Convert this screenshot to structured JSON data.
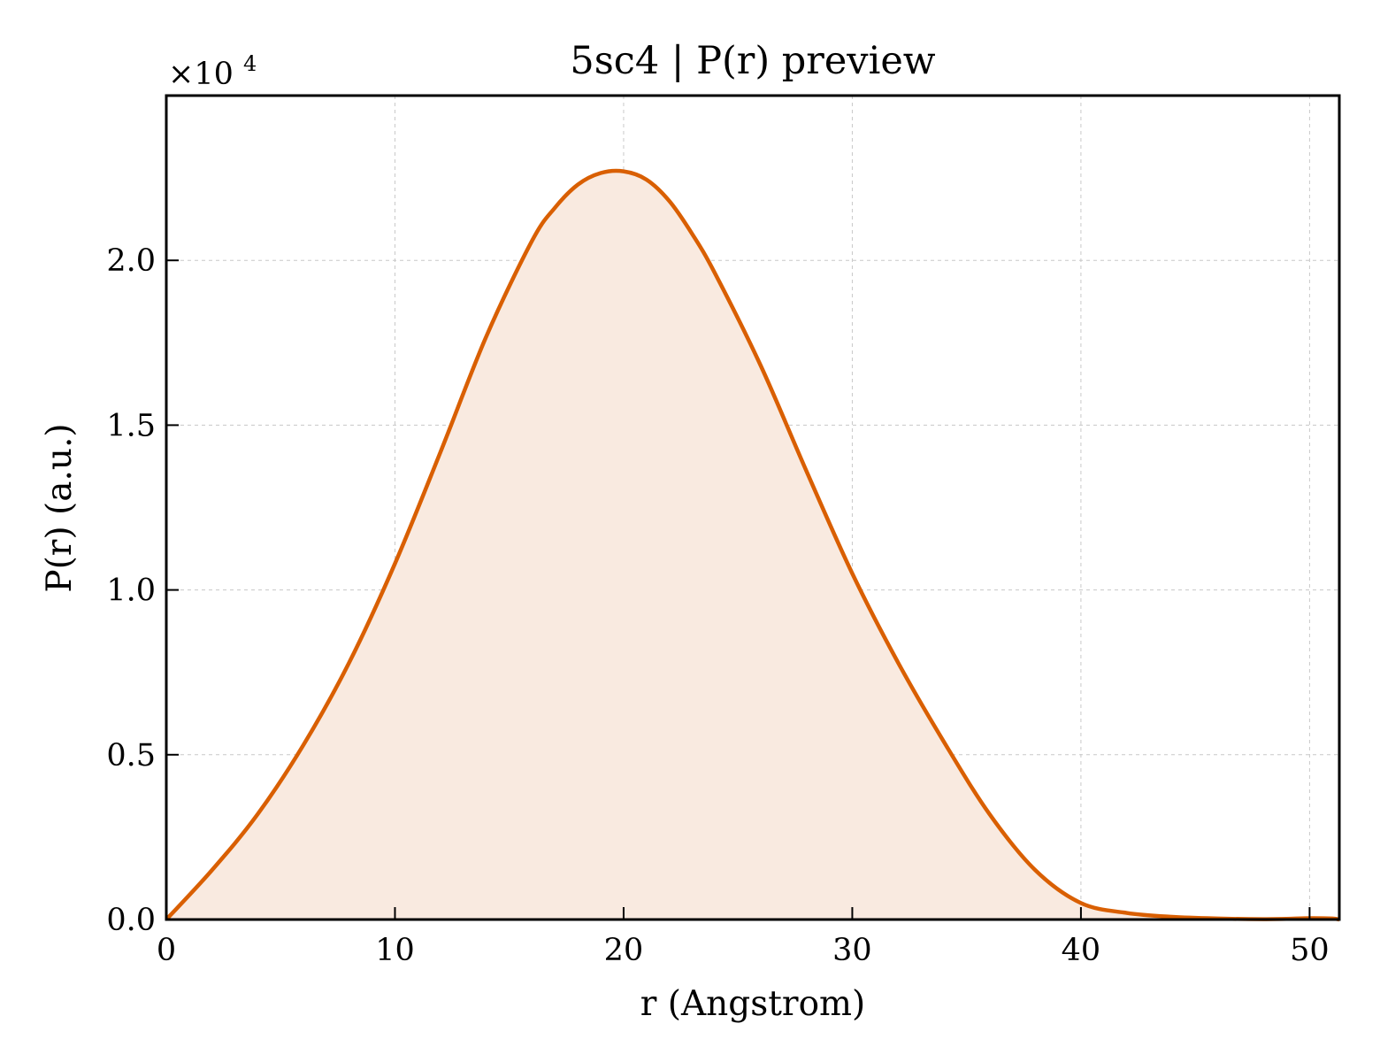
{
  "chart_data": {
    "type": "area",
    "title": "5sc4 | P(r) preview",
    "xlabel": "r (Angstrom)",
    "ylabel": "P(r) (a.u.)",
    "y_offset_label": "×10",
    "y_offset_exponent": "4",
    "xlim": [
      0,
      51.3
    ],
    "ylim": [
      0,
      2.5
    ],
    "xticks": [
      0,
      10,
      20,
      30,
      40,
      50
    ],
    "xtick_labels": [
      "0",
      "10",
      "20",
      "30",
      "40",
      "50"
    ],
    "yticks": [
      0,
      0.5,
      1.0,
      1.5,
      2.0
    ],
    "ytick_labels": [
      "0.0",
      "0.5",
      "1.0",
      "1.5",
      "2.0"
    ],
    "grid": true,
    "line_color": "#d95f02",
    "fill_color": "#f9eae0",
    "series": [
      {
        "x": [
          0,
          2,
          4,
          6,
          8,
          10,
          12,
          14,
          16,
          17,
          18,
          19,
          20,
          21,
          22,
          23,
          24,
          26,
          28,
          30,
          32,
          34,
          36,
          38,
          40,
          42,
          44,
          46,
          48,
          49,
          50,
          51,
          51.3
        ],
        "y": [
          0,
          0.15,
          0.32,
          0.53,
          0.78,
          1.08,
          1.42,
          1.77,
          2.06,
          2.16,
          2.23,
          2.265,
          2.27,
          2.245,
          2.18,
          2.08,
          1.96,
          1.68,
          1.36,
          1.05,
          0.78,
          0.54,
          0.32,
          0.15,
          0.05,
          0.02,
          0.008,
          0.003,
          0.001,
          0.002,
          0.004,
          0.003,
          0.0
        ]
      }
    ]
  }
}
